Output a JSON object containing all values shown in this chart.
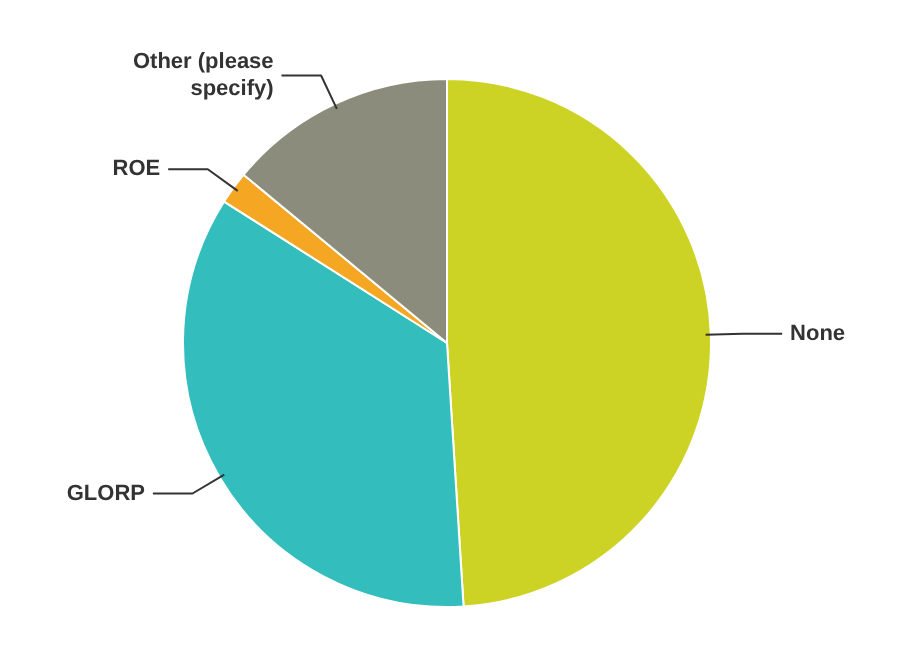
{
  "chart_data": {
    "type": "pie",
    "categories": [
      "None",
      "GLORP",
      "ROE",
      "Other (please specify)"
    ],
    "values": [
      49,
      35,
      2,
      14
    ],
    "colors": [
      "#cdd325",
      "#33bdbd",
      "#f5a623",
      "#8c8c7c"
    ]
  }
}
